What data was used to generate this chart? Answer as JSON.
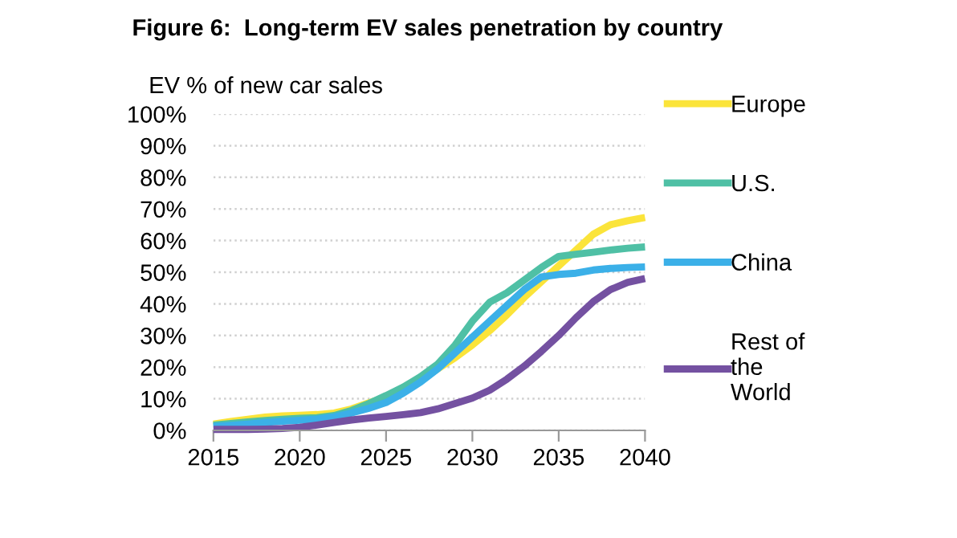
{
  "chart_data": {
    "type": "line",
    "title": "Figure 6:  Long-term EV sales penetration by country",
    "ylabel": "EV % of new car sales",
    "x": [
      2015,
      2016,
      2017,
      2018,
      2019,
      2020,
      2021,
      2022,
      2023,
      2024,
      2025,
      2026,
      2027,
      2028,
      2029,
      2030,
      2031,
      2032,
      2033,
      2034,
      2035,
      2036,
      2037,
      2038,
      2039,
      2040
    ],
    "series": [
      {
        "name": "Europe",
        "color": "#fbe43a",
        "values": [
          2.0,
          2.8,
          3.5,
          4.2,
          4.6,
          4.8,
          5.0,
          5.5,
          6.8,
          8.7,
          10.5,
          13,
          16,
          19.5,
          23,
          27,
          31.5,
          36.5,
          42,
          47,
          52,
          57,
          62,
          65,
          66.3,
          67.3
        ]
      },
      {
        "name": "U.S.",
        "color": "#4fc0a5",
        "values": [
          1.7,
          2.2,
          2.7,
          3.1,
          3.5,
          3.8,
          4.0,
          4.7,
          6.3,
          8.5,
          11,
          13.7,
          17,
          21,
          27,
          34.5,
          40.5,
          43.5,
          47.5,
          51.5,
          55,
          55.7,
          56.3,
          57,
          57.6,
          58
        ]
      },
      {
        "name": "China",
        "color": "#3bb0e8",
        "values": [
          1.2,
          1.6,
          2.0,
          2.5,
          2.9,
          3.2,
          3.6,
          4.3,
          5.5,
          7.0,
          8.8,
          11.8,
          15.3,
          19.5,
          24.5,
          29.5,
          34.5,
          39.5,
          44.5,
          48.5,
          49.3,
          49.7,
          50.7,
          51.2,
          51.5,
          51.7
        ]
      },
      {
        "name": "Rest of\nthe\nWorld",
        "color": "#7451a1",
        "values": [
          0.3,
          0.3,
          0.3,
          0.4,
          0.6,
          1.0,
          1.7,
          2.5,
          3.3,
          3.9,
          4.4,
          5.0,
          5.6,
          6.8,
          8.5,
          10.2,
          12.7,
          16.2,
          20.3,
          25,
          30,
          35.6,
          40.7,
          44.5,
          46.8,
          48
        ]
      }
    ],
    "xlim": [
      2015,
      2040
    ],
    "xticks": [
      2015,
      2020,
      2025,
      2030,
      2035,
      2040
    ],
    "ylim": [
      0,
      100
    ],
    "yticks": [
      {
        "value": 0,
        "label": "0%"
      },
      {
        "value": 10,
        "label": "10%"
      },
      {
        "value": 20,
        "label": "20%"
      },
      {
        "value": 30,
        "label": "30%"
      },
      {
        "value": 40,
        "label": "40%"
      },
      {
        "value": 50,
        "label": "50%"
      },
      {
        "value": 60,
        "label": "60%"
      },
      {
        "value": 70,
        "label": "70%"
      },
      {
        "value": 80,
        "label": "80%"
      },
      {
        "value": 90,
        "label": "90%"
      },
      {
        "value": 100,
        "label": "100%"
      }
    ],
    "grid": "y",
    "legend": "right",
    "line_style": "solid"
  }
}
